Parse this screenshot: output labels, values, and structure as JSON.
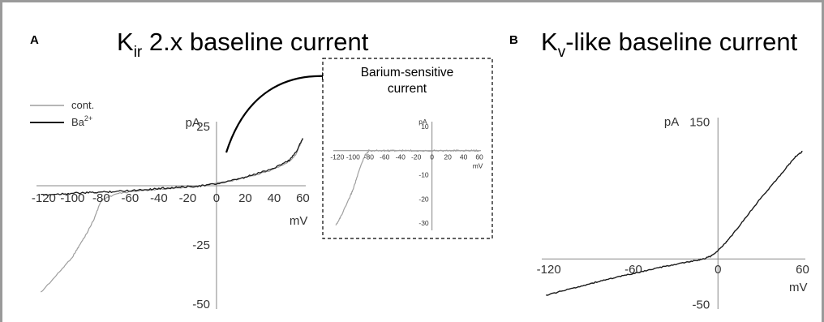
{
  "panels": {
    "a": {
      "label": "A",
      "title_main": "K",
      "title_sub": "ir",
      "title_rest": " 2.x baseline current"
    },
    "b": {
      "label": "B",
      "title_main": "K",
      "title_sub": "v",
      "title_rest": "-like baseline current"
    }
  },
  "inset": {
    "title_line1": "Barium-sensitive",
    "title_line2": "current"
  },
  "colors": {
    "control": "#9e9e9e",
    "barium": "#1a1a1a",
    "kv": "#1a1a1a",
    "inset": "#a0a0a0",
    "axis": "#888888"
  },
  "chart_data": [
    {
      "id": "kir-baseline",
      "type": "line",
      "ylabel": "pA",
      "xlabel": "mV",
      "xlim": [
        -125,
        62
      ],
      "ylim": [
        -52,
        27
      ],
      "xticks": [
        -120,
        -100,
        -80,
        -60,
        -40,
        -20,
        0,
        20,
        40,
        60
      ],
      "xtick_labels": [
        "-120",
        "-100",
        "-80",
        "-60",
        "-40",
        "-20",
        "0",
        "20",
        "40",
        "60"
      ],
      "yticks": [
        25,
        -25,
        -50
      ],
      "ytick_labels": [
        "25",
        "-25",
        "-50"
      ],
      "legend_position": "top-left",
      "series": [
        {
          "name": "cont.",
          "x": [
            -122,
            -110,
            -100,
            -95,
            -90,
            -85,
            -80,
            -70,
            -60,
            -50,
            -40,
            -30,
            -20,
            -10,
            0,
            10,
            20,
            30,
            40,
            50,
            55,
            60
          ],
          "y": [
            -45,
            -37,
            -30,
            -25,
            -20,
            -14,
            -6,
            -3.5,
            -2.5,
            -2,
            -1.5,
            -1,
            -0.5,
            0,
            1,
            2,
            3.5,
            5,
            7,
            10,
            13,
            20
          ]
        },
        {
          "name_main": "Ba",
          "name_sup": "2+",
          "x": [
            -122,
            -110,
            -100,
            -90,
            -80,
            -70,
            -60,
            -50,
            -40,
            -30,
            -20,
            -10,
            0,
            10,
            20,
            30,
            40,
            50,
            55,
            60
          ],
          "y": [
            -4,
            -3.5,
            -3.2,
            -3,
            -2.7,
            -2.4,
            -2,
            -1.6,
            -1.2,
            -0.8,
            -0.4,
            0,
            0.8,
            2,
            3.5,
            5.5,
            7.5,
            10.5,
            14,
            20
          ]
        }
      ]
    },
    {
      "id": "barium-sensitive-inset",
      "type": "line",
      "ylabel": "pA",
      "xlabel": "mV",
      "xlim": [
        -125,
        62
      ],
      "ylim": [
        -33,
        12
      ],
      "xticks": [
        -120,
        -100,
        -80,
        -60,
        -40,
        -20,
        0,
        20,
        40,
        60
      ],
      "xtick_labels": [
        "-120",
        "-100",
        "-80",
        "-60",
        "-40",
        "-20",
        "0",
        "20",
        "40",
        "60"
      ],
      "yticks": [
        10,
        -10,
        -20,
        -30
      ],
      "ytick_labels": [
        "10",
        "-10",
        "-20",
        "-30"
      ],
      "series": [
        {
          "x": [
            -122,
            -115,
            -105,
            -100,
            -95,
            -90,
            -85,
            -80,
            -70,
            -60,
            -50,
            -40,
            -30,
            -20,
            -10,
            0,
            10,
            20,
            30,
            40,
            50,
            60
          ],
          "y": [
            -31,
            -27,
            -20,
            -16,
            -11,
            -6,
            -2,
            0,
            0,
            0,
            0,
            0,
            0,
            0,
            0,
            0,
            0,
            0,
            0,
            0,
            0,
            0
          ]
        }
      ]
    },
    {
      "id": "kv-baseline",
      "type": "line",
      "ylabel": "pA",
      "xlabel": "mV",
      "xlim": [
        -125,
        62
      ],
      "ylim": [
        -55,
        155
      ],
      "xticks": [
        -120,
        -60,
        0,
        60
      ],
      "xtick_labels": [
        "-120",
        "-60",
        "0",
        "60"
      ],
      "yticks": [
        150,
        -50
      ],
      "ytick_labels": [
        "150",
        "-50"
      ],
      "series": [
        {
          "x": [
            -122,
            -110,
            -100,
            -90,
            -80,
            -70,
            -60,
            -50,
            -40,
            -30,
            -20,
            -15,
            -10,
            -5,
            0,
            5,
            10,
            20,
            30,
            40,
            50,
            55,
            60
          ],
          "y": [
            -40,
            -35,
            -31,
            -27,
            -23,
            -19.5,
            -16,
            -12.5,
            -9,
            -6,
            -3,
            -1.5,
            0,
            3,
            9,
            17,
            26,
            46,
            66,
            84,
            103,
            112,
            118
          ]
        }
      ]
    }
  ]
}
